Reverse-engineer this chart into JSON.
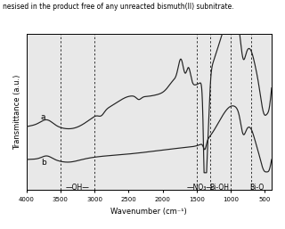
{
  "title": "nesised in the product free of any unreacted bismuth(II) subnitrate.",
  "xlabel": "Wavenumber (cm⁻¹)",
  "ylabel": "Transmittance (a.u.)",
  "xmin": 4000,
  "xmax": 400,
  "dashed_lines": [
    3500,
    3000,
    1500,
    1300,
    1000,
    700
  ],
  "curve_a_color": "#222222",
  "curve_b_color": "#222222",
  "background_color": "#e8e8e8"
}
